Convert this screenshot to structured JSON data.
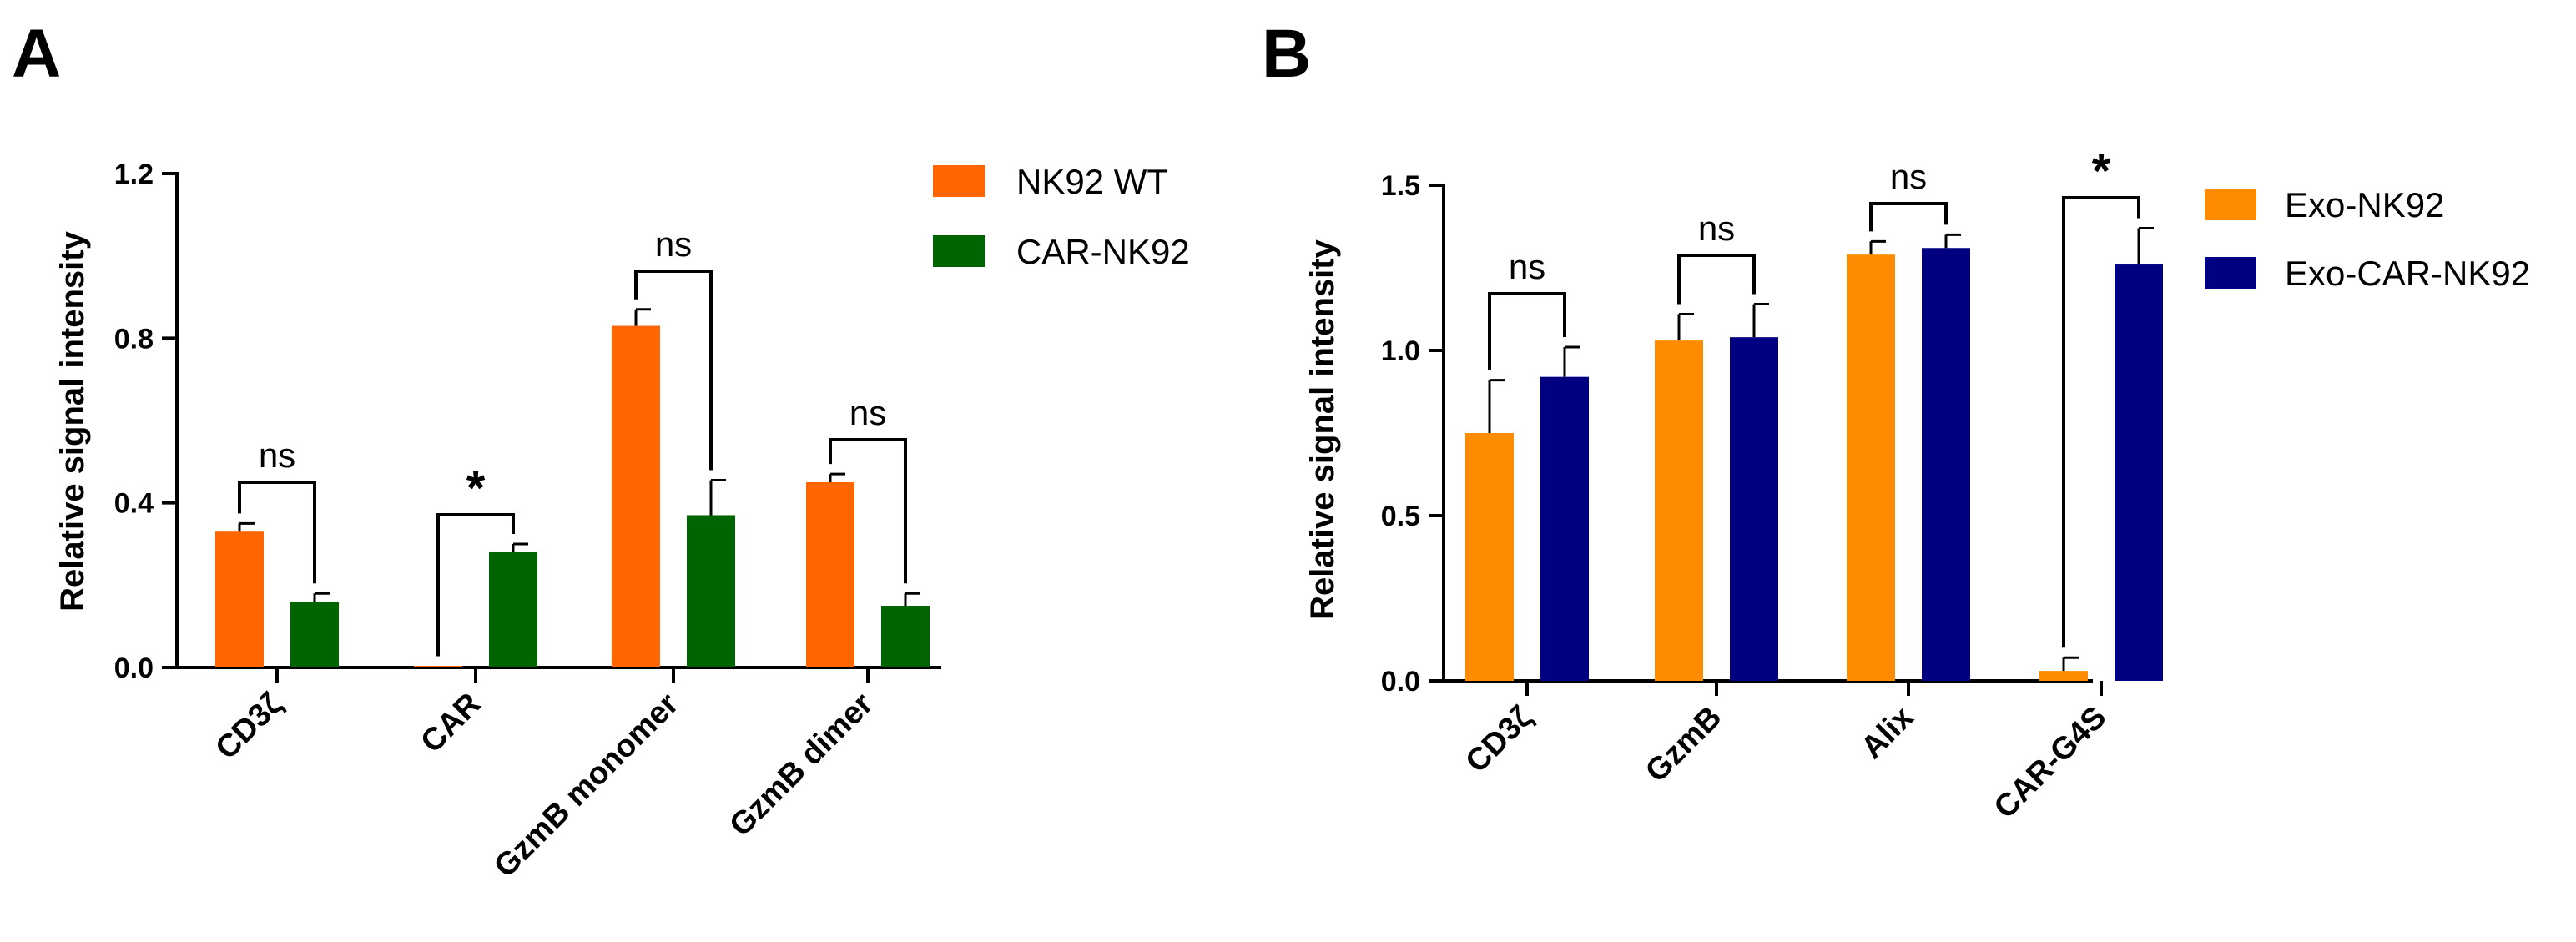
{
  "chart_data": [
    {
      "panel": "A",
      "type": "bar",
      "ylabel": "Relative signal intensity",
      "xlabel": "",
      "ylim": [
        0,
        1.2
      ],
      "yticks": [
        "0.0",
        "0.4",
        "0.8",
        "1.2"
      ],
      "ytick_values": [
        0,
        0.4,
        0.8,
        1.2
      ],
      "categories": [
        "CD3ζ",
        "CAR",
        "GzmB monomer",
        "GzmB dimer"
      ],
      "series": [
        {
          "name": "NK92 WT",
          "color": "#ff6600",
          "values": [
            0.33,
            0.003,
            0.83,
            0.45
          ],
          "errors": [
            0.02,
            0.0,
            0.04,
            0.02
          ]
        },
        {
          "name": "CAR-NK92",
          "color": "#006400",
          "values": [
            0.16,
            0.28,
            0.37,
            0.15
          ],
          "errors": [
            0.02,
            0.02,
            0.085,
            0.03
          ]
        }
      ],
      "significance": [
        "ns",
        "*",
        "ns",
        "ns"
      ],
      "legend_position": "top-right"
    },
    {
      "panel": "B",
      "type": "bar",
      "ylabel": "Relative signal intensity",
      "xlabel": "",
      "ylim": [
        0,
        1.5
      ],
      "yticks": [
        "0.0",
        "0.5",
        "1.0",
        "1.5"
      ],
      "ytick_values": [
        0,
        0.5,
        1.0,
        1.5
      ],
      "categories": [
        "CD3ζ",
        "GzmB",
        "Alix",
        "CAR-G4S"
      ],
      "series": [
        {
          "name": "Exo-NK92",
          "color": "#ff8c00",
          "values": [
            0.75,
            1.03,
            1.29,
            0.03
          ],
          "errors": [
            0.16,
            0.08,
            0.04,
            0.04
          ]
        },
        {
          "name": "Exo-CAR-NK92",
          "color": "#000080",
          "values": [
            0.92,
            1.04,
            1.31,
            1.26
          ],
          "errors": [
            0.09,
            0.1,
            0.04,
            0.11
          ]
        }
      ],
      "significance": [
        "ns",
        "ns",
        "ns",
        "*"
      ],
      "legend_position": "top-right"
    }
  ]
}
